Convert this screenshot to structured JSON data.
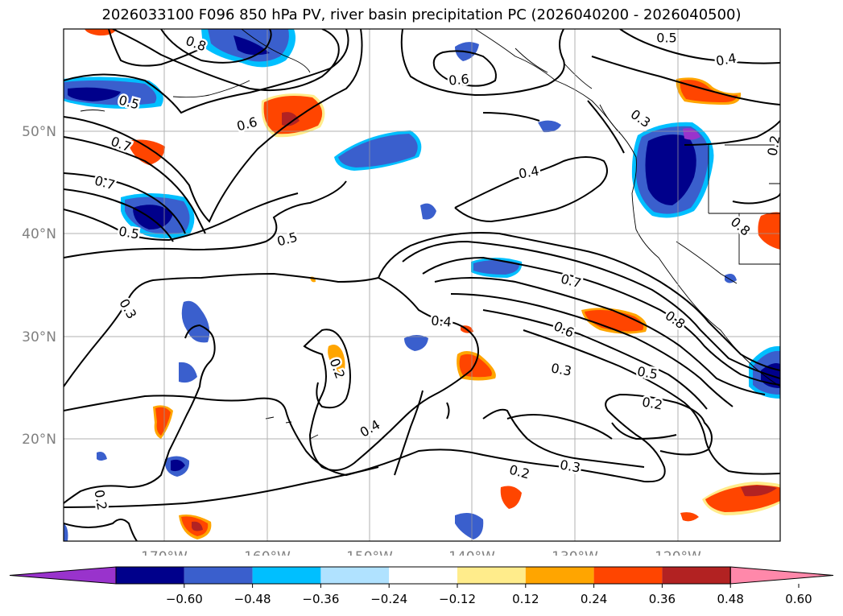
{
  "title": "2026033100 F096 850 hPa PV, river basin precipitation PC (2026040200 - 2026040500)",
  "map": {
    "lon_labels": [
      "170°W",
      "160°W",
      "150°W",
      "140°W",
      "130°W",
      "120°W"
    ],
    "lat_labels": [
      "50°N",
      "40°N",
      "30°N",
      "20°N"
    ],
    "label_color": "#808080",
    "contour_labels": [
      {
        "text": "0.8",
        "name": "pv-label-0.8-a"
      },
      {
        "text": "0.5",
        "name": "pv-label-0.5-a"
      },
      {
        "text": "0.4",
        "name": "pv-label-0.4-a"
      },
      {
        "text": "0.6",
        "name": "pv-label-0.6-a"
      },
      {
        "text": "0.5",
        "name": "pv-label-0.5-b"
      },
      {
        "text": "0.7",
        "name": "pv-label-0.7-a"
      },
      {
        "text": "0.6",
        "name": "pv-label-0.6-b"
      },
      {
        "text": "0.7",
        "name": "pv-label-0.7-b"
      },
      {
        "text": "0.8",
        "name": "pv-label-0.8-b"
      },
      {
        "text": "0.5",
        "name": "pv-label-0.5-c"
      },
      {
        "text": "0.4",
        "name": "pv-label-0.4-b"
      },
      {
        "text": "0.3",
        "name": "pv-label-0.3-a"
      },
      {
        "text": "0.5",
        "name": "pv-label-0.5-d"
      },
      {
        "text": "0.7",
        "name": "pv-label-0.7-c"
      },
      {
        "text": "0.4",
        "name": "pv-label-0.4-c"
      },
      {
        "text": "0.6",
        "name": "pv-label-0.6-c"
      },
      {
        "text": "0.8",
        "name": "pv-label-0.8-c"
      },
      {
        "text": "0.3",
        "name": "pv-label-0.3-b"
      },
      {
        "text": "0.5",
        "name": "pv-label-0.5-e"
      },
      {
        "text": "0.2",
        "name": "pv-label-0.2-a"
      },
      {
        "text": "0.4",
        "name": "pv-label-0.4-d"
      },
      {
        "text": "0.3",
        "name": "pv-label-0.3-c"
      },
      {
        "text": "0.2",
        "name": "pv-label-0.2-b"
      },
      {
        "text": "0.3",
        "name": "pv-label-0.3-d"
      },
      {
        "text": "0.2",
        "name": "pv-label-0.2-c"
      },
      {
        "text": "0.2",
        "name": "pv-label-0.2-d"
      },
      {
        "text": "0.2",
        "name": "pv-label-0.2-e"
      }
    ]
  },
  "colorbar": {
    "tick_labels": [
      "−0.60",
      "−0.48",
      "−0.36",
      "−0.24",
      "−0.12",
      "0.12",
      "0.24",
      "0.36",
      "0.48",
      "0.60"
    ],
    "colors": [
      "#9933cc",
      "#00008b",
      "#3a5fcd",
      "#00bfff",
      "#b0e2ff",
      "#ffffff",
      "#ffec8b",
      "#ffa500",
      "#ff4500",
      "#b22222",
      "#ff88aa"
    ]
  }
}
